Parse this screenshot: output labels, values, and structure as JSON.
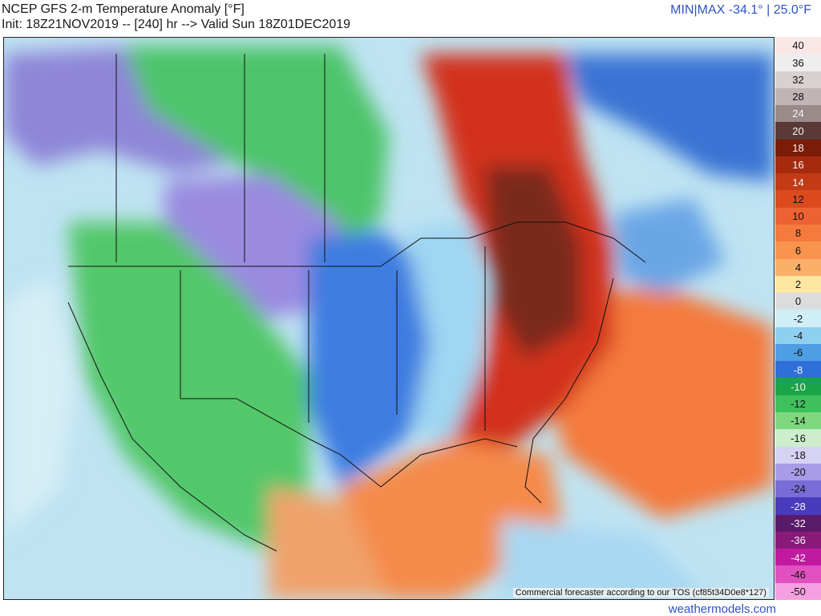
{
  "header": {
    "title": "NCEP GFS 2-m Temperature Anomaly [°F]",
    "subtitle": "Init: 18Z21NOV2019 -- [240] hr --> Valid Sun 18Z01DEC2019",
    "minmax": "MIN|MAX -34.1° | 25.0°F"
  },
  "map": {
    "tos_note": "Commercial forecaster according to our TOS (cf85t34D0e8*127)",
    "regions": [
      {
        "name": "western-us-cold",
        "anomaly": -12,
        "color": "#52c76a"
      },
      {
        "name": "northern-plains-cold",
        "anomaly": -20,
        "color": "#9a8ae0"
      },
      {
        "name": "western-canada-cold",
        "anomaly": -18,
        "color": "#8f86d8"
      },
      {
        "name": "central-plains-cold",
        "anomaly": -8,
        "color": "#3d7de0"
      },
      {
        "name": "pacific-cool",
        "anomaly": -2,
        "color": "#bde3f2"
      },
      {
        "name": "eastern-us-warm",
        "anomaly": 12,
        "color": "#d2331a"
      },
      {
        "name": "ohio-valley-very-warm",
        "anomaly": 20,
        "color": "#6e3a2e"
      },
      {
        "name": "atlantic-warm",
        "anomaly": 6,
        "color": "#f47a3e"
      },
      {
        "name": "gulf-warm",
        "anomaly": 6,
        "color": "#f58a4c"
      },
      {
        "name": "northeast-canada-cool",
        "anomaly": -6,
        "color": "#3b73d4"
      }
    ]
  },
  "colorbar": {
    "stops": [
      {
        "label": "40",
        "color": "#fbe6e6"
      },
      {
        "label": "36",
        "color": "#eeeeee"
      },
      {
        "label": "32",
        "color": "#d9d0d0"
      },
      {
        "label": "28",
        "color": "#c0b4b4"
      },
      {
        "label": "24",
        "color": "#9a8a8a"
      },
      {
        "label": "20",
        "color": "#5a3a36"
      },
      {
        "label": "18",
        "color": "#7a1c08"
      },
      {
        "label": "16",
        "color": "#a52a0e"
      },
      {
        "label": "14",
        "color": "#c23a16"
      },
      {
        "label": "12",
        "color": "#dc4a1e"
      },
      {
        "label": "10",
        "color": "#ec6232"
      },
      {
        "label": "8",
        "color": "#f57a3e"
      },
      {
        "label": "6",
        "color": "#f8944e"
      },
      {
        "label": "4",
        "color": "#fbb06a"
      },
      {
        "label": "2",
        "color": "#fde6a0"
      },
      {
        "label": "0",
        "color": "#dcdcdc"
      },
      {
        "label": "-2",
        "color": "#cfeef8"
      },
      {
        "label": "-4",
        "color": "#8fcff0"
      },
      {
        "label": "-6",
        "color": "#4e9ee4"
      },
      {
        "label": "-8",
        "color": "#2f6fd8"
      },
      {
        "label": "-10",
        "color": "#1aa548"
      },
      {
        "label": "-12",
        "color": "#3ec05c"
      },
      {
        "label": "-14",
        "color": "#7ed87e"
      },
      {
        "label": "-16",
        "color": "#cceecc"
      },
      {
        "label": "-18",
        "color": "#d6d2f4"
      },
      {
        "label": "-20",
        "color": "#a89ce8"
      },
      {
        "label": "-24",
        "color": "#7a6cd6"
      },
      {
        "label": "-28",
        "color": "#4a3abc"
      },
      {
        "label": "-32",
        "color": "#5a1a6a"
      },
      {
        "label": "-36",
        "color": "#8a1a7a"
      },
      {
        "label": "-42",
        "color": "#c01aa0"
      },
      {
        "label": "-46",
        "color": "#e050c0"
      },
      {
        "label": "-50",
        "color": "#f4a0e0"
      }
    ]
  },
  "footer": {
    "credit": "weathermodels.com"
  }
}
